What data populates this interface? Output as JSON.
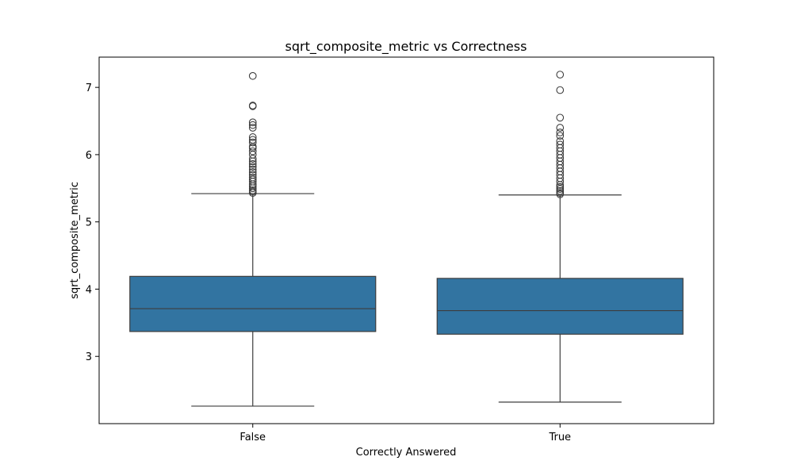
{
  "chart_data": {
    "type": "box",
    "title": "sqrt_composite_metric vs Correctness",
    "xlabel": "Correctly Answered",
    "ylabel": "sqrt_composite_metric",
    "categories": [
      "False",
      "True"
    ],
    "ylim": [
      2.0,
      7.45
    ],
    "yticks": [
      3,
      4,
      5,
      6,
      7
    ],
    "grid": false,
    "box_color": "#3274a1",
    "line_color": "#3d3d3d",
    "boxes": [
      {
        "category": "False",
        "whisker_low": 2.26,
        "q1": 3.37,
        "median": 3.71,
        "q3": 4.19,
        "whisker_high": 5.42,
        "outliers": [
          5.43,
          5.45,
          5.47,
          5.5,
          5.53,
          5.56,
          5.6,
          5.63,
          5.66,
          5.7,
          5.74,
          5.78,
          5.82,
          5.86,
          5.9,
          5.94,
          6.0,
          6.05,
          6.1,
          6.12,
          6.18,
          6.22,
          6.26,
          6.4,
          6.44,
          6.48,
          6.72,
          6.73,
          7.17
        ]
      },
      {
        "category": "True",
        "whisker_low": 2.32,
        "q1": 3.33,
        "median": 3.68,
        "q3": 4.16,
        "whisker_high": 5.4,
        "outliers": [
          5.41,
          5.43,
          5.46,
          5.49,
          5.52,
          5.55,
          5.6,
          5.65,
          5.7,
          5.75,
          5.8,
          5.85,
          5.9,
          5.95,
          6.0,
          6.05,
          6.1,
          6.15,
          6.2,
          6.28,
          6.33,
          6.4,
          6.55,
          6.96,
          7.19
        ]
      }
    ]
  }
}
